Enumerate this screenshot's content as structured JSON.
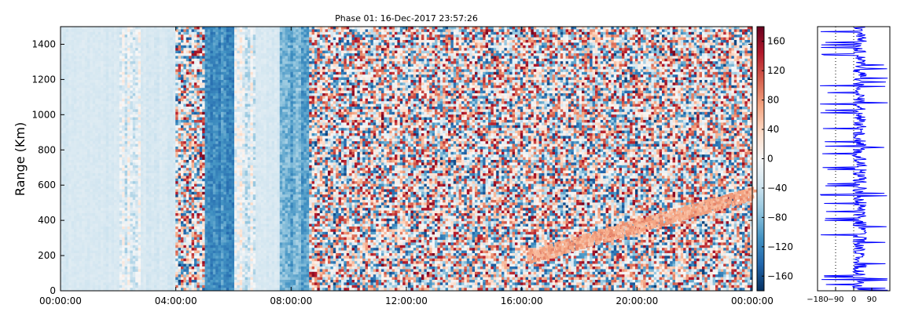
{
  "chart_data": [
    {
      "type": "heatmap",
      "title": "Phase 01: 16-Dec-2017 23:57:26",
      "xlabel": "",
      "ylabel": "Range (Km)",
      "x_tick_labels": [
        "00:00:00",
        "04:00:00",
        "08:00:00",
        "12:00:00",
        "16:00:00",
        "20:00:00",
        "00:00:00"
      ],
      "y_ticks": [
        0,
        200,
        400,
        600,
        800,
        1000,
        1200,
        1400
      ],
      "ylim": [
        0,
        1500
      ],
      "x_range_hours": [
        0,
        24
      ],
      "colorbar": {
        "ticks": [
          160,
          120,
          80,
          40,
          0,
          -40,
          -80,
          -120,
          -160
        ],
        "range": [
          -180,
          180
        ],
        "colormap": "RdBu_r",
        "colors": [
          "#053061",
          "#2166ac",
          "#4393c3",
          "#92c5de",
          "#d1e5f0",
          "#f7f7f7",
          "#fddbc7",
          "#f4a582",
          "#d6604d",
          "#b2182b",
          "#67001f"
        ]
      },
      "segments_hours": [
        {
          "start": 0,
          "end": 2,
          "pattern": "light-blue smooth",
          "center": -30,
          "spread": 12
        },
        {
          "start": 2,
          "end": 2.8,
          "pattern": "light mixed",
          "center": -20,
          "spread": 60
        },
        {
          "start": 2.8,
          "end": 4,
          "pattern": "light-blue smooth",
          "center": -30,
          "spread": 14
        },
        {
          "start": 4,
          "end": 5,
          "pattern": "strong noise",
          "center": 0,
          "spread": 180
        },
        {
          "start": 5,
          "end": 6,
          "pattern": "blue band",
          "center": -110,
          "spread": 40
        },
        {
          "start": 6,
          "end": 6.8,
          "pattern": "light mixed",
          "center": -20,
          "spread": 70
        },
        {
          "start": 6.8,
          "end": 7.6,
          "pattern": "light-blue smooth",
          "center": -30,
          "spread": 14
        },
        {
          "start": 7.6,
          "end": 8.6,
          "pattern": "blue band",
          "center": -90,
          "spread": 45
        },
        {
          "start": 8.6,
          "end": 24,
          "pattern": "strong noise",
          "center": 0,
          "spread": 180
        }
      ],
      "trace_feature": {
        "description": "linear phase trace",
        "start": {
          "hour": 16.2,
          "km": 200
        },
        "end": {
          "hour": 24,
          "km": 560
        },
        "value": 70
      }
    },
    {
      "type": "line",
      "title": "",
      "x_tick_labels": [
        "−180",
        "−90",
        "0",
        "90"
      ],
      "xlim": [
        -180,
        180
      ],
      "ylim": [
        0,
        1500
      ],
      "color": "#0000ff",
      "dotted_verticals": [
        -90,
        0
      ]
    }
  ]
}
